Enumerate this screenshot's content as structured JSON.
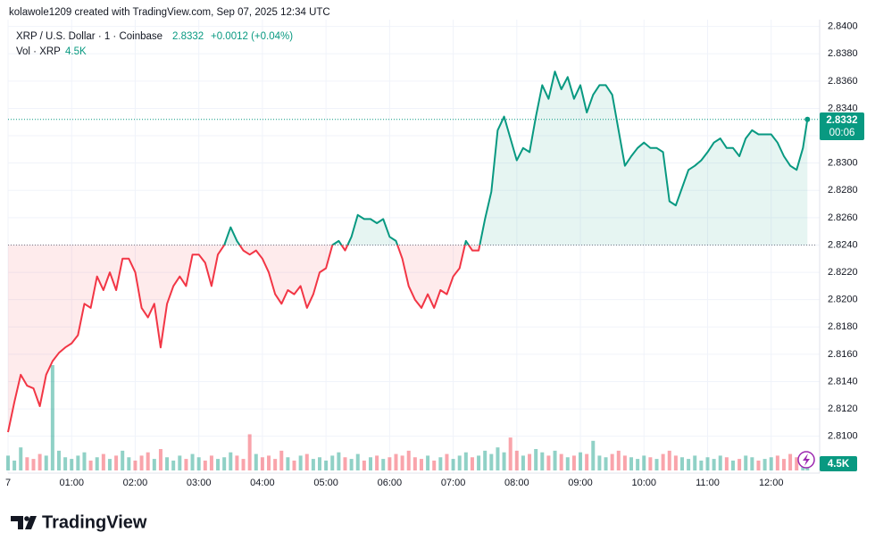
{
  "header": {
    "credit": "kolawole1209 created with TradingView.com, Sep 07, 2025 12:34 UTC",
    "logo": "TradingView"
  },
  "chart_data": {
    "type": "baseline",
    "x": [
      0,
      0.1,
      0.2,
      0.3,
      0.4,
      0.5,
      0.6,
      0.7,
      0.8,
      0.9,
      1,
      1.1,
      1.2,
      1.3,
      1.4,
      1.5,
      1.6,
      1.7,
      1.8,
      1.9,
      2,
      2.1,
      2.2,
      2.3,
      2.4,
      2.5,
      2.6,
      2.7,
      2.8,
      2.9,
      3,
      3.1,
      3.2,
      3.3,
      3.4,
      3.5,
      3.6,
      3.7,
      3.8,
      3.9,
      4,
      4.1,
      4.2,
      4.3,
      4.4,
      4.5,
      4.6,
      4.7,
      4.8,
      4.9,
      5,
      5.1,
      5.2,
      5.3,
      5.4,
      5.5,
      5.6,
      5.7,
      5.8,
      5.9,
      6,
      6.1,
      6.2,
      6.3,
      6.4,
      6.5,
      6.6,
      6.7,
      6.8,
      6.9,
      7,
      7.1,
      7.2,
      7.3,
      7.4,
      7.5,
      7.6,
      7.7,
      7.8,
      7.9,
      8,
      8.1,
      8.2,
      8.3,
      8.4,
      8.5,
      8.6,
      8.7,
      8.8,
      8.9,
      9,
      9.1,
      9.2,
      9.3,
      9.4,
      9.5,
      9.6,
      9.7,
      9.8,
      9.9,
      10,
      10.1,
      10.2,
      10.3,
      10.4,
      10.5,
      10.6,
      10.7,
      10.8,
      10.9,
      11,
      11.1,
      11.2,
      11.3,
      11.4,
      11.5,
      11.6,
      11.7,
      11.8,
      11.9,
      12,
      12.1,
      12.2,
      12.3,
      12.4,
      12.5,
      12.57
    ],
    "series": [
      {
        "name": "XRP / U.S. Dollar · 1 · Coinbase",
        "color_up": "#089981",
        "color_down": "#f23645",
        "values": [
          2.8103,
          2.8125,
          2.8145,
          2.8137,
          2.8135,
          2.8122,
          2.8145,
          2.8155,
          2.8161,
          2.8165,
          2.8168,
          2.8174,
          2.8197,
          2.8194,
          2.8217,
          2.8207,
          2.822,
          2.8207,
          2.823,
          2.823,
          2.822,
          2.8194,
          2.8187,
          2.8197,
          2.8165,
          2.8197,
          2.821,
          2.8217,
          2.821,
          2.8233,
          2.8233,
          2.8227,
          2.821,
          2.8233,
          2.824,
          2.8253,
          2.8243,
          2.8236,
          2.8233,
          2.8236,
          2.823,
          2.822,
          2.8204,
          2.8197,
          2.8207,
          2.8204,
          2.821,
          2.8194,
          2.8204,
          2.822,
          2.8223,
          2.824,
          2.8243,
          2.8236,
          2.8246,
          2.8262,
          2.8259,
          2.8259,
          2.8256,
          2.8259,
          2.8246,
          2.8243,
          2.823,
          2.821,
          2.82,
          2.8194,
          2.8204,
          2.8194,
          2.8207,
          2.8204,
          2.8217,
          2.8223,
          2.8243,
          2.8236,
          2.8236,
          2.8259,
          2.8279,
          2.8324,
          2.8334,
          2.8318,
          2.8302,
          2.8311,
          2.8308,
          2.8334,
          2.8357,
          2.8347,
          2.8367,
          2.8354,
          2.8363,
          2.8347,
          2.8357,
          2.8337,
          2.835,
          2.8357,
          2.8357,
          2.835,
          2.8324,
          2.8298,
          2.8305,
          2.8311,
          2.8315,
          2.8311,
          2.8311,
          2.8308,
          2.8272,
          2.8269,
          2.8282,
          2.8295,
          2.8298,
          2.8302,
          2.8308,
          2.8315,
          2.8318,
          2.8311,
          2.8311,
          2.8305,
          2.8318,
          2.8324,
          2.8321,
          2.8321,
          2.8321,
          2.8315,
          2.8305,
          2.8298,
          2.8295,
          2.8311,
          2.8332
        ]
      }
    ],
    "change": "+0.0012 (+0.04%)",
    "countdown": "00:06",
    "baseline": 2.824,
    "volume": {
      "name": "Vol · XRP",
      "last_label": "4.5K",
      "values": [
        9000,
        6000,
        14000,
        8000,
        7000,
        10000,
        9000,
        64000,
        12000,
        8000,
        7000,
        9000,
        11000,
        6000,
        8000,
        10000,
        7000,
        9000,
        12000,
        8000,
        6000,
        9000,
        11000,
        7000,
        13000,
        8000,
        6000,
        9000,
        7000,
        10000,
        8000,
        6000,
        9000,
        7000,
        8000,
        11000,
        9000,
        7000,
        22000,
        10000,
        8000,
        9000,
        7000,
        12000,
        8000,
        6000,
        9000,
        10000,
        7000,
        8000,
        6000,
        9000,
        11000,
        8000,
        7000,
        10000,
        6000,
        8000,
        9000,
        7000,
        8000,
        10000,
        9000,
        12000,
        8000,
        7000,
        9000,
        6000,
        8000,
        10000,
        7000,
        9000,
        11000,
        8000,
        9000,
        12000,
        10000,
        14000,
        11000,
        20000,
        12000,
        9000,
        10000,
        13000,
        11000,
        9000,
        12000,
        10000,
        8000,
        9000,
        11000,
        10000,
        18000,
        9000,
        8000,
        10000,
        12000,
        9000,
        8000,
        7000,
        9000,
        8000,
        7000,
        10000,
        12000,
        9000,
        8000,
        7000,
        9000,
        6000,
        8000,
        7000,
        9000,
        8000,
        6000,
        7000,
        9000,
        8000,
        6000,
        7000,
        8000,
        9000,
        7000,
        10000,
        8000,
        6000,
        4500
      ]
    },
    "xlim": [
      0,
      12.72
    ],
    "ylim": [
      2.8073,
      2.8405
    ],
    "xticks": [
      {
        "value": 0,
        "label": "7"
      },
      {
        "value": 1,
        "label": "01:00"
      },
      {
        "value": 2,
        "label": "02:00"
      },
      {
        "value": 3,
        "label": "03:00"
      },
      {
        "value": 4,
        "label": "04:00"
      },
      {
        "value": 5,
        "label": "05:00"
      },
      {
        "value": 6,
        "label": "06:00"
      },
      {
        "value": 7,
        "label": "07:00"
      },
      {
        "value": 8,
        "label": "08:00"
      },
      {
        "value": 9,
        "label": "09:00"
      },
      {
        "value": 10,
        "label": "10:00"
      },
      {
        "value": 11,
        "label": "11:00"
      },
      {
        "value": 12,
        "label": "12:00"
      }
    ],
    "yticks": [
      {
        "value": 2.81,
        "label": "2.8100"
      },
      {
        "value": 2.812,
        "label": "2.8120"
      },
      {
        "value": 2.814,
        "label": "2.8140"
      },
      {
        "value": 2.816,
        "label": "2.8160"
      },
      {
        "value": 2.818,
        "label": "2.8180"
      },
      {
        "value": 2.82,
        "label": "2.8200"
      },
      {
        "value": 2.822,
        "label": "2.8220"
      },
      {
        "value": 2.824,
        "label": "2.8240"
      },
      {
        "value": 2.826,
        "label": "2.8260"
      },
      {
        "value": 2.828,
        "label": "2.8280"
      },
      {
        "value": 2.83,
        "label": "2.8300"
      },
      {
        "value": 2.832,
        "label": "2.8320"
      },
      {
        "value": 2.834,
        "label": "2.8340"
      },
      {
        "value": 2.836,
        "label": "2.8360"
      },
      {
        "value": 2.838,
        "label": "2.8380"
      },
      {
        "value": 2.84,
        "label": "2.8400"
      }
    ],
    "grid": true
  }
}
